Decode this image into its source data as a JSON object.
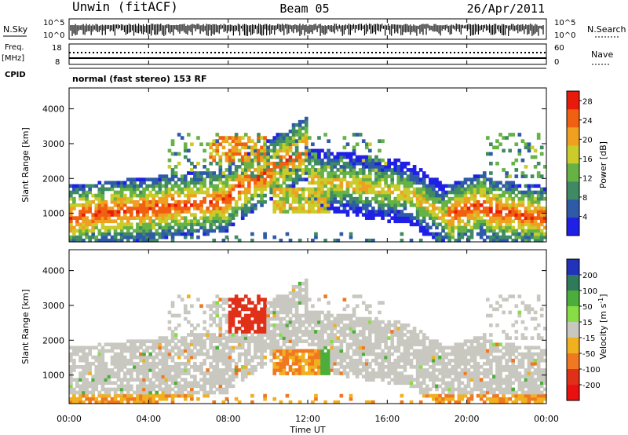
{
  "header": {
    "station": "Unwin (fitACF)",
    "beam": "Beam 05",
    "date": "26/Apr/2011"
  },
  "noise_panel": {
    "left_label": "N.Sky",
    "right_label": "N.Search",
    "left_ticks": [
      "10^5",
      "10^0"
    ],
    "right_ticks": [
      "10^5",
      "10^0"
    ]
  },
  "freq_panel": {
    "left_label_line1": "Freq.",
    "left_label_line2": "[MHz]",
    "left_ticks": [
      "18",
      "8"
    ],
    "right_label": "Nave",
    "right_ticks": [
      "60",
      "0"
    ]
  },
  "cpid_panel": {
    "label": "CPID",
    "mode": "normal (fast stereo) 153 RF"
  },
  "chart_data": [
    {
      "type": "heatmap",
      "title": "Power",
      "xlabel": "Time UT",
      "ylabel": "Slant Range [km]",
      "x_ticks": [
        "00:00",
        "04:00",
        "08:00",
        "12:00",
        "16:00",
        "20:00",
        "00:00"
      ],
      "y_ticks": [
        1000,
        2000,
        3000,
        4000
      ],
      "xlim_hours": [
        0,
        24
      ],
      "ylim_km": [
        180,
        4600
      ],
      "colorbar": {
        "label": "Power [dB]",
        "ticks": [
          4,
          8,
          12,
          16,
          20,
          24,
          28
        ],
        "range": [
          0,
          30
        ],
        "colors": [
          "#1f1fe6",
          "#2e5aa8",
          "#3f8a64",
          "#66b244",
          "#c9cc2a",
          "#f0a020",
          "#f06010",
          "#e81a0a"
        ]
      }
    },
    {
      "type": "heatmap",
      "title": "Velocity",
      "xlabel": "Time UT",
      "ylabel": "Slant Range [km]",
      "x_ticks": [
        "00:00",
        "04:00",
        "08:00",
        "12:00",
        "16:00",
        "20:00",
        "00:00"
      ],
      "y_ticks": [
        1000,
        2000,
        3000,
        4000
      ],
      "xlim_hours": [
        0,
        24
      ],
      "ylim_km": [
        180,
        4600
      ],
      "colorbar": {
        "label": "Velocity [m s-1]",
        "ticks": [
          200,
          100,
          50,
          15,
          -15,
          -50,
          -100,
          -200
        ],
        "colors": [
          "#2233bb",
          "#2f7a5a",
          "#4cae3a",
          "#88dd44",
          "#c8c8c0",
          "#f0b020",
          "#f07820",
          "#e03018",
          "#e81010"
        ]
      }
    }
  ],
  "x_axis": {
    "label": "Time UT",
    "ticks": [
      "00:00",
      "04:00",
      "08:00",
      "12:00",
      "16:00",
      "20:00",
      "00:00"
    ]
  },
  "colors": {
    "ground_scatter": "#c8c8c0",
    "axis": "#000000"
  }
}
